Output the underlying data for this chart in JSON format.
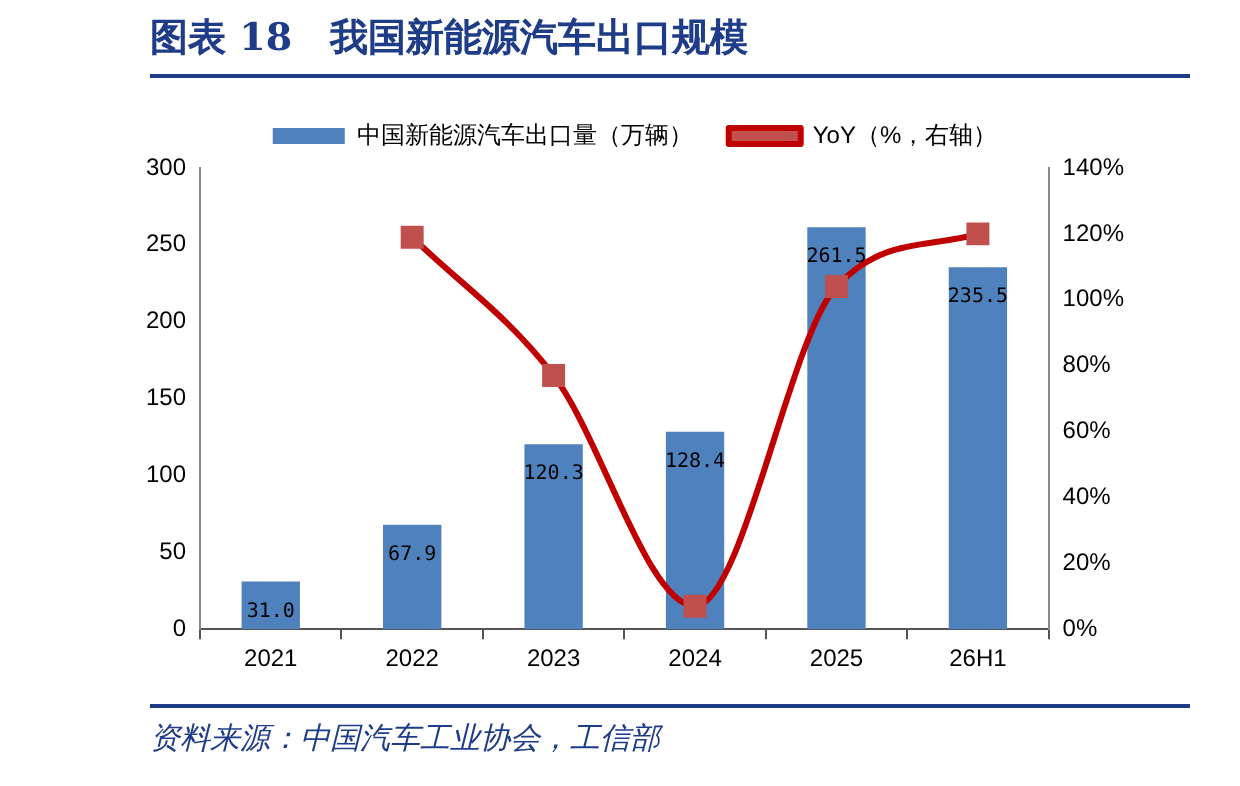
{
  "chart_data": {
    "type": "bar",
    "title": "图表 18　我国新能源汽车出口规模",
    "categories": [
      "2021",
      "2022",
      "2023",
      "2024",
      "2025",
      "26H1"
    ],
    "series": [
      {
        "name": "中国新能源汽车出口量（万辆）",
        "color": "#4f81bd",
        "values": [
          31.0,
          67.9,
          120.3,
          128.4,
          261.5,
          235.5
        ],
        "value_labels": [
          "31.0",
          "67.9",
          "120.3",
          "128.4",
          "261.5",
          "235.5"
        ]
      },
      {
        "name": "YoY（%，右轴）",
        "type": "line",
        "axis": "y2",
        "color": "#c00000",
        "marker": "square",
        "values": [
          null,
          119,
          77,
          7,
          104,
          120
        ]
      }
    ],
    "ylim": [
      0,
      300
    ],
    "yticks": [
      0,
      50,
      100,
      150,
      200,
      250,
      300
    ],
    "y2lim": [
      0,
      140
    ],
    "y2ticks": [
      {
        "value": 0,
        "label": "0%"
      },
      {
        "value": 20,
        "label": "20%"
      },
      {
        "value": 40,
        "label": "40%"
      },
      {
        "value": 60,
        "label": "60%"
      },
      {
        "value": 80,
        "label": "80%"
      },
      {
        "value": 100,
        "label": "100%"
      },
      {
        "value": 120,
        "label": "120%"
      },
      {
        "value": 140,
        "label": "140%"
      }
    ],
    "grid": false,
    "legend": "top",
    "annotations": [
      "资料来源：中国汽车工业协会，工信部"
    ]
  }
}
